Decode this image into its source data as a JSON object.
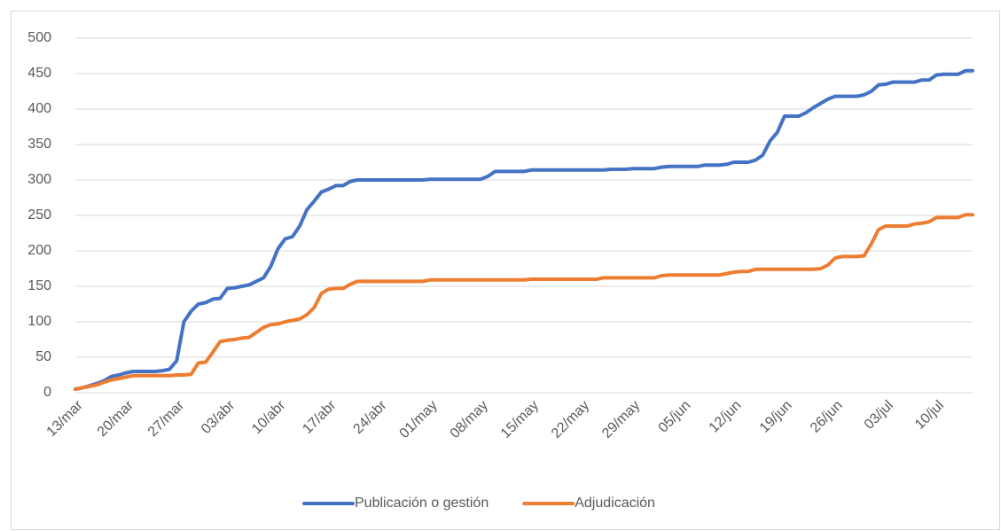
{
  "chart_data": {
    "type": "line",
    "categories": [
      "13/mar",
      null,
      null,
      null,
      null,
      null,
      null,
      "20/mar",
      null,
      null,
      null,
      null,
      null,
      null,
      "27/mar",
      null,
      null,
      null,
      null,
      null,
      null,
      "03/abr",
      null,
      null,
      null,
      null,
      null,
      null,
      "10/abr",
      null,
      null,
      null,
      null,
      null,
      null,
      "17/abr",
      null,
      null,
      null,
      null,
      null,
      null,
      "24/abr",
      null,
      null,
      null,
      null,
      null,
      null,
      "01/may",
      null,
      null,
      null,
      null,
      null,
      null,
      "08/may",
      null,
      null,
      null,
      null,
      null,
      null,
      "15/may",
      null,
      null,
      null,
      null,
      null,
      null,
      "22/may",
      null,
      null,
      null,
      null,
      null,
      null,
      "29/may",
      null,
      null,
      null,
      null,
      null,
      null,
      "05/jun",
      null,
      null,
      null,
      null,
      null,
      null,
      "12/jun",
      null,
      null,
      null,
      null,
      null,
      null,
      "19/jun",
      null,
      null,
      null,
      null,
      null,
      null,
      "26/jun",
      null,
      null,
      null,
      null,
      null,
      null,
      "03/jul",
      null,
      null,
      null,
      null,
      null,
      null,
      "10/jul",
      null,
      null,
      null,
      null,
      null
    ],
    "series": [
      {
        "name": "Publicación o gestión",
        "color": "#4472c4",
        "values": [
          5,
          7,
          10,
          13,
          17,
          23,
          25,
          28,
          30,
          30,
          30,
          30,
          31,
          33,
          45,
          100,
          115,
          125,
          127,
          132,
          133,
          147,
          148,
          150,
          152,
          157,
          162,
          178,
          203,
          217,
          220,
          235,
          258,
          270,
          283,
          287,
          292,
          292,
          298,
          300,
          300,
          300,
          300,
          300,
          300,
          300,
          300,
          300,
          300,
          301,
          301,
          301,
          301,
          301,
          301,
          301,
          301,
          305,
          312,
          312,
          312,
          312,
          312,
          314,
          314,
          314,
          314,
          314,
          314,
          314,
          314,
          314,
          314,
          314,
          315,
          315,
          315,
          316,
          316,
          316,
          316,
          318,
          319,
          319,
          319,
          319,
          319,
          321,
          321,
          321,
          322,
          325,
          325,
          325,
          328,
          335,
          355,
          367,
          390,
          390,
          390,
          395,
          402,
          408,
          414,
          418,
          418,
          418,
          418,
          420,
          425,
          434,
          435,
          438,
          438,
          438,
          438,
          441,
          441,
          448,
          449,
          449,
          449,
          454,
          454
        ]
      },
      {
        "name": "Adjudicación",
        "color": "#ed7d31",
        "values": [
          5,
          7,
          9,
          11,
          15,
          18,
          20,
          22,
          24,
          24,
          24,
          24,
          24,
          24,
          25,
          25,
          26,
          42,
          43,
          57,
          72,
          74,
          75,
          77,
          78,
          85,
          92,
          96,
          97,
          100,
          102,
          104,
          110,
          120,
          140,
          146,
          147,
          147,
          153,
          157,
          157,
          157,
          157,
          157,
          157,
          157,
          157,
          157,
          157,
          159,
          159,
          159,
          159,
          159,
          159,
          159,
          159,
          159,
          159,
          159,
          159,
          159,
          159,
          160,
          160,
          160,
          160,
          160,
          160,
          160,
          160,
          160,
          160,
          162,
          162,
          162,
          162,
          162,
          162,
          162,
          162,
          165,
          166,
          166,
          166,
          166,
          166,
          166,
          166,
          166,
          168,
          170,
          171,
          171,
          174,
          174,
          174,
          174,
          174,
          174,
          174,
          174,
          174,
          175,
          180,
          190,
          192,
          192,
          192,
          193,
          210,
          230,
          235,
          235,
          235,
          235,
          238,
          239,
          241,
          247,
          247,
          247,
          247,
          251,
          251
        ]
      }
    ],
    "ylim": [
      0,
      500
    ],
    "yticks": [
      0,
      50,
      100,
      150,
      200,
      250,
      300,
      350,
      400,
      450,
      500
    ],
    "grid": true,
    "legend": "bottom"
  }
}
